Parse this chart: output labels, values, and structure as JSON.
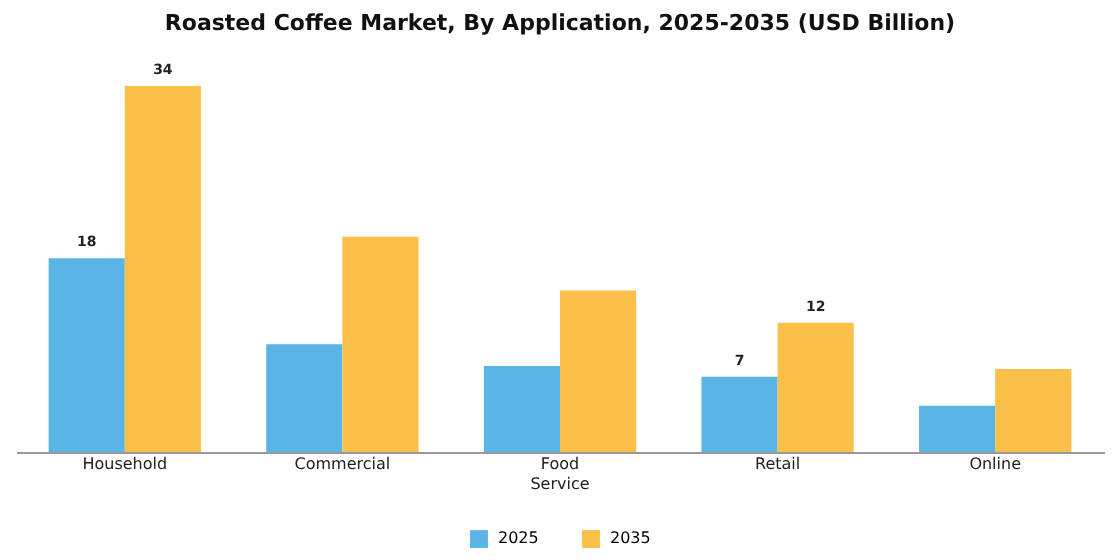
{
  "chart_data": {
    "type": "bar",
    "title": "Roasted Coffee Market, By Application, 2025-2035 (USD Billion)",
    "categories": [
      "Household",
      "Commercial",
      "Food Service",
      "Retail",
      "Online"
    ],
    "legend": "bottom",
    "grid": false,
    "series": [
      {
        "name": "2025",
        "color": "#5ab4e6",
        "values": [
          18,
          10,
          8,
          7,
          4.3
        ],
        "value_labels": [
          "18",
          null,
          null,
          "7",
          null
        ]
      },
      {
        "name": "2035",
        "color": "#fbc04a",
        "values": [
          34,
          20,
          15,
          12,
          7.7
        ],
        "value_labels": [
          "34",
          null,
          null,
          "12",
          null
        ]
      }
    ]
  }
}
